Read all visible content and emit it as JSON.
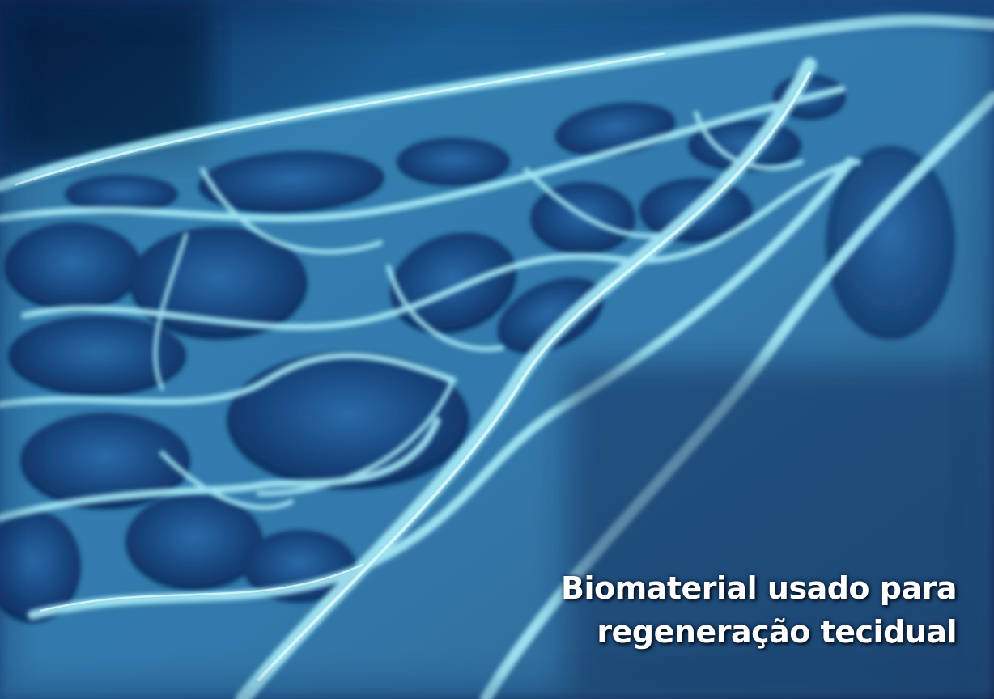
{
  "caption": {
    "line1": "Biomaterial usado para",
    "line2": "regeneração tecidual"
  },
  "colors": {
    "deep": "#0a2450",
    "mid": "#1e5a9a",
    "glow": "#8fe3f5",
    "highlight": "#d8fbff"
  }
}
